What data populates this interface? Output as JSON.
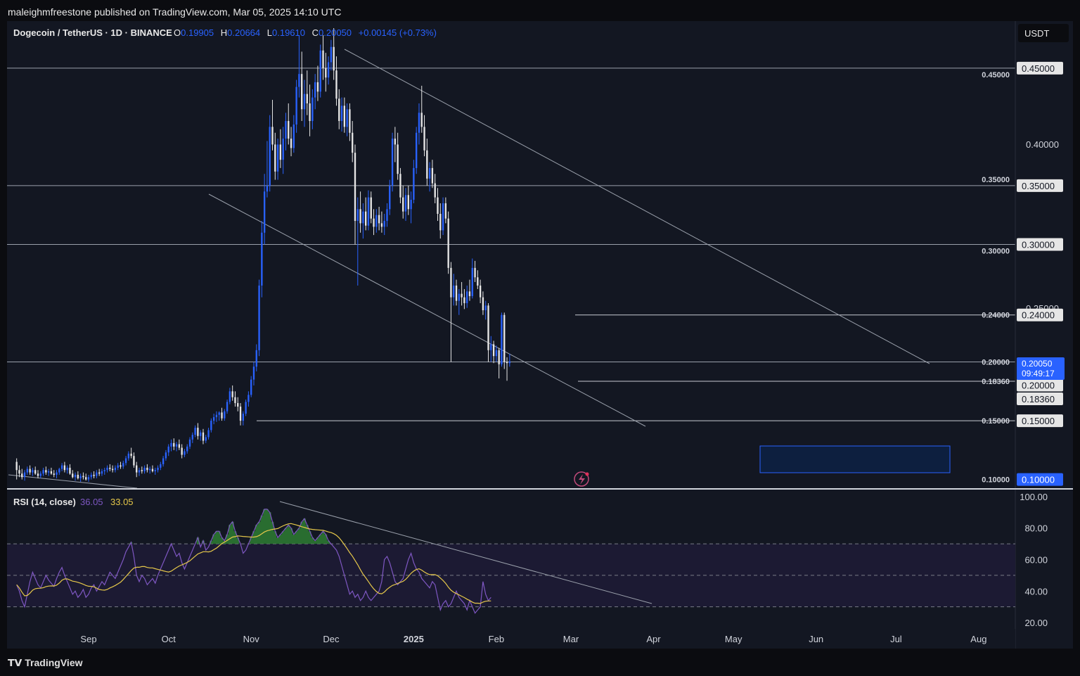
{
  "header": {
    "attribution": "maleighmfreestone published on TradingView.com, Mar 05, 2025 14:10 UTC"
  },
  "footer": {
    "brand": "TradingView"
  },
  "colors": {
    "background": "#131722",
    "up": "#2962ff",
    "down": "#e6e6e6",
    "rsi": "#7e57c2",
    "rsi_ma": "#e6c84a",
    "label_blue": "#2962ff"
  },
  "legend": {
    "symbol": "Dogecoin / TetherUS · 1D · BINANCE",
    "o_label": "O",
    "o": "0.19905",
    "h_label": "H",
    "h": "0.20664",
    "l_label": "L",
    "l": "0.19610",
    "c_label": "C",
    "c": "0.20050",
    "change": "+0.00145 (+0.73%)"
  },
  "currency": "USDT",
  "rsi_legend": {
    "name": "RSI (14, close)",
    "value": "36.05",
    "ma": "33.05"
  },
  "price_axis_labels": [
    "0.40000",
    "0.25000"
  ],
  "rsi_axis_labels": [
    "100.00",
    "80.00",
    "60.00",
    "40.00",
    "20.00"
  ],
  "hlines": [
    {
      "price": 0.45,
      "label": "0.45000",
      "badge": "0.45000"
    },
    {
      "price": 0.35,
      "label": "0.35000",
      "badge": "0.35000"
    },
    {
      "price": 0.3,
      "label": "0.30000",
      "badge": "0.30000"
    },
    {
      "price": 0.24,
      "label": "0.24000",
      "badge": "0.24000"
    },
    {
      "price": 0.2,
      "label": "0.20000",
      "badge": "0.20000"
    },
    {
      "price": 0.1836,
      "label": "0.18360",
      "badge": "0.18360"
    },
    {
      "price": 0.15,
      "label": "0.15000",
      "badge": "0.15000"
    },
    {
      "price": 0.1,
      "label": "0.10000",
      "badge": "0.10000"
    }
  ],
  "current_price": {
    "value": "0.20050",
    "countdown": "09:49:17"
  },
  "time_labels": [
    "Sep",
    "Oct",
    "Nov",
    "Dec",
    "2025",
    "Feb",
    "Mar",
    "Apr",
    "May",
    "Jun",
    "Jul",
    "Aug"
  ],
  "chart_data": {
    "type": "candlestick",
    "x_start": "Aug 05, 2024",
    "x_end": "Mar 05, 2025",
    "ylim": [
      0.092,
      0.49
    ],
    "candles": [
      [
        0.115,
        0.118,
        0.1,
        0.108
      ],
      [
        0.108,
        0.112,
        0.102,
        0.105
      ],
      [
        0.105,
        0.109,
        0.1,
        0.102
      ],
      [
        0.102,
        0.108,
        0.099,
        0.106
      ],
      [
        0.106,
        0.111,
        0.104,
        0.109
      ],
      [
        0.109,
        0.112,
        0.104,
        0.106
      ],
      [
        0.106,
        0.11,
        0.103,
        0.108
      ],
      [
        0.108,
        0.111,
        0.104,
        0.105
      ],
      [
        0.105,
        0.108,
        0.101,
        0.103
      ],
      [
        0.103,
        0.107,
        0.101,
        0.105
      ],
      [
        0.105,
        0.11,
        0.103,
        0.108
      ],
      [
        0.108,
        0.111,
        0.104,
        0.106
      ],
      [
        0.106,
        0.109,
        0.103,
        0.107
      ],
      [
        0.107,
        0.11,
        0.104,
        0.105
      ],
      [
        0.105,
        0.108,
        0.102,
        0.104
      ],
      [
        0.104,
        0.108,
        0.101,
        0.106
      ],
      [
        0.106,
        0.11,
        0.104,
        0.109
      ],
      [
        0.109,
        0.114,
        0.107,
        0.112
      ],
      [
        0.112,
        0.115,
        0.106,
        0.108
      ],
      [
        0.108,
        0.112,
        0.105,
        0.11
      ],
      [
        0.11,
        0.113,
        0.104,
        0.105
      ],
      [
        0.105,
        0.108,
        0.101,
        0.102
      ],
      [
        0.102,
        0.106,
        0.099,
        0.104
      ],
      [
        0.104,
        0.107,
        0.1,
        0.101
      ],
      [
        0.101,
        0.105,
        0.098,
        0.103
      ],
      [
        0.103,
        0.106,
        0.1,
        0.102
      ],
      [
        0.102,
        0.105,
        0.099,
        0.1
      ],
      [
        0.1,
        0.104,
        0.098,
        0.102
      ],
      [
        0.102,
        0.106,
        0.1,
        0.104
      ],
      [
        0.104,
        0.107,
        0.101,
        0.103
      ],
      [
        0.103,
        0.108,
        0.101,
        0.106
      ],
      [
        0.106,
        0.109,
        0.103,
        0.105
      ],
      [
        0.105,
        0.109,
        0.103,
        0.107
      ],
      [
        0.107,
        0.11,
        0.104,
        0.108
      ],
      [
        0.108,
        0.112,
        0.106,
        0.11
      ],
      [
        0.11,
        0.113,
        0.107,
        0.109
      ],
      [
        0.109,
        0.112,
        0.106,
        0.108
      ],
      [
        0.108,
        0.112,
        0.106,
        0.11
      ],
      [
        0.11,
        0.114,
        0.108,
        0.112
      ],
      [
        0.112,
        0.115,
        0.109,
        0.111
      ],
      [
        0.111,
        0.116,
        0.109,
        0.114
      ],
      [
        0.114,
        0.12,
        0.112,
        0.118
      ],
      [
        0.118,
        0.124,
        0.116,
        0.122
      ],
      [
        0.122,
        0.127,
        0.118,
        0.12
      ],
      [
        0.12,
        0.123,
        0.11,
        0.112
      ],
      [
        0.112,
        0.115,
        0.102,
        0.106
      ],
      [
        0.106,
        0.11,
        0.103,
        0.108
      ],
      [
        0.108,
        0.111,
        0.105,
        0.107
      ],
      [
        0.107,
        0.112,
        0.105,
        0.11
      ],
      [
        0.11,
        0.113,
        0.106,
        0.108
      ],
      [
        0.108,
        0.111,
        0.105,
        0.109
      ],
      [
        0.109,
        0.112,
        0.106,
        0.107
      ],
      [
        0.107,
        0.11,
        0.104,
        0.108
      ],
      [
        0.108,
        0.112,
        0.106,
        0.11
      ],
      [
        0.11,
        0.115,
        0.108,
        0.113
      ],
      [
        0.113,
        0.12,
        0.111,
        0.118
      ],
      [
        0.118,
        0.125,
        0.116,
        0.123
      ],
      [
        0.123,
        0.13,
        0.12,
        0.128
      ],
      [
        0.128,
        0.134,
        0.124,
        0.131
      ],
      [
        0.131,
        0.135,
        0.125,
        0.128
      ],
      [
        0.128,
        0.132,
        0.124,
        0.13
      ],
      [
        0.13,
        0.134,
        0.125,
        0.127
      ],
      [
        0.127,
        0.13,
        0.118,
        0.121
      ],
      [
        0.121,
        0.126,
        0.119,
        0.124
      ],
      [
        0.124,
        0.13,
        0.122,
        0.128
      ],
      [
        0.128,
        0.136,
        0.126,
        0.134
      ],
      [
        0.134,
        0.14,
        0.131,
        0.138
      ],
      [
        0.138,
        0.146,
        0.136,
        0.144
      ],
      [
        0.144,
        0.148,
        0.134,
        0.137
      ],
      [
        0.137,
        0.142,
        0.133,
        0.14
      ],
      [
        0.14,
        0.143,
        0.13,
        0.133
      ],
      [
        0.133,
        0.138,
        0.131,
        0.136
      ],
      [
        0.136,
        0.144,
        0.134,
        0.142
      ],
      [
        0.142,
        0.152,
        0.14,
        0.15
      ],
      [
        0.15,
        0.156,
        0.147,
        0.153
      ],
      [
        0.153,
        0.158,
        0.149,
        0.155
      ],
      [
        0.155,
        0.158,
        0.15,
        0.157
      ],
      [
        0.157,
        0.161,
        0.15,
        0.152
      ],
      [
        0.152,
        0.16,
        0.15,
        0.158
      ],
      [
        0.158,
        0.168,
        0.156,
        0.166
      ],
      [
        0.166,
        0.178,
        0.164,
        0.175
      ],
      [
        0.175,
        0.18,
        0.167,
        0.17
      ],
      [
        0.17,
        0.175,
        0.162,
        0.165
      ],
      [
        0.165,
        0.17,
        0.158,
        0.162
      ],
      [
        0.162,
        0.165,
        0.146,
        0.15
      ],
      [
        0.15,
        0.158,
        0.146,
        0.156
      ],
      [
        0.156,
        0.168,
        0.154,
        0.166
      ],
      [
        0.166,
        0.175,
        0.162,
        0.172
      ],
      [
        0.172,
        0.188,
        0.17,
        0.185
      ],
      [
        0.185,
        0.2,
        0.18,
        0.196
      ],
      [
        0.196,
        0.215,
        0.192,
        0.21
      ],
      [
        0.21,
        0.27,
        0.205,
        0.265
      ],
      [
        0.265,
        0.32,
        0.255,
        0.31
      ],
      [
        0.31,
        0.36,
        0.3,
        0.345
      ],
      [
        0.345,
        0.388,
        0.34,
        0.35
      ],
      [
        0.35,
        0.41,
        0.345,
        0.4
      ],
      [
        0.4,
        0.423,
        0.38,
        0.385
      ],
      [
        0.385,
        0.395,
        0.355,
        0.362
      ],
      [
        0.362,
        0.39,
        0.355,
        0.385
      ],
      [
        0.385,
        0.398,
        0.365,
        0.372
      ],
      [
        0.372,
        0.4,
        0.36,
        0.39
      ],
      [
        0.39,
        0.412,
        0.38,
        0.405
      ],
      [
        0.405,
        0.42,
        0.385,
        0.39
      ],
      [
        0.39,
        0.4,
        0.375,
        0.382
      ],
      [
        0.382,
        0.41,
        0.378,
        0.402
      ],
      [
        0.402,
        0.44,
        0.395,
        0.434
      ],
      [
        0.434,
        0.478,
        0.425,
        0.445
      ],
      [
        0.445,
        0.464,
        0.405,
        0.415
      ],
      [
        0.415,
        0.44,
        0.4,
        0.428
      ],
      [
        0.428,
        0.448,
        0.41,
        0.42
      ],
      [
        0.42,
        0.436,
        0.392,
        0.405
      ],
      [
        0.405,
        0.432,
        0.398,
        0.425
      ],
      [
        0.425,
        0.445,
        0.415,
        0.438
      ],
      [
        0.438,
        0.452,
        0.422,
        0.43
      ],
      [
        0.43,
        0.47,
        0.425,
        0.465
      ],
      [
        0.465,
        0.478,
        0.44,
        0.45
      ],
      [
        0.45,
        0.463,
        0.43,
        0.442
      ],
      [
        0.442,
        0.46,
        0.436,
        0.455
      ],
      [
        0.455,
        0.474,
        0.448,
        0.468
      ],
      [
        0.468,
        0.484,
        0.44,
        0.448
      ],
      [
        0.448,
        0.46,
        0.418,
        0.424
      ],
      [
        0.424,
        0.432,
        0.398,
        0.405
      ],
      [
        0.405,
        0.425,
        0.396,
        0.418
      ],
      [
        0.418,
        0.425,
        0.395,
        0.4
      ],
      [
        0.4,
        0.42,
        0.392,
        0.415
      ],
      [
        0.415,
        0.42,
        0.388,
        0.395
      ],
      [
        0.395,
        0.405,
        0.37,
        0.378
      ],
      [
        0.378,
        0.385,
        0.3,
        0.32
      ],
      [
        0.32,
        0.34,
        0.265,
        0.33
      ],
      [
        0.33,
        0.345,
        0.31,
        0.318
      ],
      [
        0.318,
        0.335,
        0.305,
        0.328
      ],
      [
        0.328,
        0.34,
        0.312,
        0.316
      ],
      [
        0.316,
        0.346,
        0.312,
        0.34
      ],
      [
        0.34,
        0.345,
        0.318,
        0.322
      ],
      [
        0.322,
        0.33,
        0.308,
        0.315
      ],
      [
        0.315,
        0.33,
        0.31,
        0.325
      ],
      [
        0.325,
        0.332,
        0.312,
        0.318
      ],
      [
        0.318,
        0.328,
        0.31,
        0.315
      ],
      [
        0.315,
        0.326,
        0.308,
        0.32
      ],
      [
        0.32,
        0.335,
        0.315,
        0.33
      ],
      [
        0.33,
        0.355,
        0.325,
        0.35
      ],
      [
        0.35,
        0.395,
        0.345,
        0.39
      ],
      [
        0.39,
        0.4,
        0.37,
        0.385
      ],
      [
        0.385,
        0.395,
        0.355,
        0.36
      ],
      [
        0.36,
        0.365,
        0.335,
        0.34
      ],
      [
        0.34,
        0.35,
        0.322,
        0.328
      ],
      [
        0.328,
        0.348,
        0.32,
        0.342
      ],
      [
        0.342,
        0.35,
        0.325,
        0.33
      ],
      [
        0.33,
        0.345,
        0.318,
        0.338
      ],
      [
        0.338,
        0.372,
        0.335,
        0.365
      ],
      [
        0.365,
        0.4,
        0.36,
        0.395
      ],
      [
        0.395,
        0.42,
        0.385,
        0.412
      ],
      [
        0.412,
        0.435,
        0.395,
        0.4
      ],
      [
        0.4,
        0.41,
        0.375,
        0.38
      ],
      [
        0.38,
        0.39,
        0.35,
        0.356
      ],
      [
        0.356,
        0.37,
        0.345,
        0.365
      ],
      [
        0.365,
        0.372,
        0.348,
        0.352
      ],
      [
        0.352,
        0.36,
        0.335,
        0.34
      ],
      [
        0.34,
        0.348,
        0.32,
        0.326
      ],
      [
        0.326,
        0.335,
        0.305,
        0.312
      ],
      [
        0.312,
        0.34,
        0.308,
        0.335
      ],
      [
        0.335,
        0.34,
        0.318,
        0.322
      ],
      [
        0.322,
        0.328,
        0.275,
        0.28
      ],
      [
        0.28,
        0.285,
        0.2,
        0.255
      ],
      [
        0.255,
        0.275,
        0.248,
        0.265
      ],
      [
        0.265,
        0.27,
        0.248,
        0.252
      ],
      [
        0.252,
        0.262,
        0.24,
        0.258
      ],
      [
        0.258,
        0.268,
        0.248,
        0.255
      ],
      [
        0.255,
        0.262,
        0.245,
        0.25
      ],
      [
        0.25,
        0.265,
        0.246,
        0.26
      ],
      [
        0.26,
        0.27,
        0.252,
        0.256
      ],
      [
        0.256,
        0.288,
        0.254,
        0.28
      ],
      [
        0.28,
        0.286,
        0.268,
        0.272
      ],
      [
        0.272,
        0.278,
        0.262,
        0.265
      ],
      [
        0.265,
        0.27,
        0.25,
        0.255
      ],
      [
        0.255,
        0.26,
        0.24,
        0.244
      ],
      [
        0.244,
        0.252,
        0.236,
        0.248
      ],
      [
        0.248,
        0.25,
        0.2,
        0.21
      ],
      [
        0.21,
        0.222,
        0.2,
        0.215
      ],
      [
        0.215,
        0.218,
        0.199,
        0.205
      ],
      [
        0.205,
        0.214,
        0.2,
        0.21
      ],
      [
        0.21,
        0.212,
        0.186,
        0.198
      ],
      [
        0.198,
        0.242,
        0.196,
        0.24
      ],
      [
        0.24,
        0.242,
        0.194,
        0.2
      ],
      [
        0.2,
        0.204,
        0.184,
        0.199
      ],
      [
        0.199,
        0.207,
        0.196,
        0.2005
      ]
    ]
  },
  "rsi_data": {
    "ylim": [
      16,
      104
    ],
    "upper": 70,
    "middle": 50,
    "lower": 30,
    "rsi": [
      44,
      40,
      34,
      30,
      38,
      46,
      52,
      48,
      44,
      42,
      46,
      50,
      47,
      45,
      43,
      48,
      52,
      55,
      50,
      46,
      42,
      38,
      40,
      36,
      38,
      41,
      36,
      38,
      42,
      44,
      40,
      43,
      46,
      44,
      48,
      52,
      50,
      48,
      52,
      56,
      60,
      65,
      68,
      71,
      62,
      50,
      46,
      50,
      48,
      44,
      46,
      48,
      45,
      50,
      54,
      58,
      62,
      66,
      70,
      66,
      62,
      64,
      58,
      54,
      58,
      62,
      66,
      70,
      74,
      68,
      72,
      66,
      68,
      72,
      76,
      78,
      78,
      74,
      72,
      76,
      82,
      84,
      78,
      74,
      70,
      64,
      66,
      70,
      74,
      78,
      82,
      84,
      88,
      92,
      92,
      90,
      84,
      78,
      74,
      76,
      78,
      80,
      82,
      80,
      76,
      78,
      80,
      84,
      86,
      82,
      78,
      74,
      72,
      74,
      76,
      78,
      76,
      72,
      70,
      68,
      66,
      62,
      56,
      50,
      44,
      38,
      40,
      36,
      38,
      34,
      36,
      40,
      36,
      34,
      36,
      38,
      40,
      46,
      60,
      62,
      58,
      52,
      46,
      44,
      46,
      48,
      54,
      60,
      64,
      58,
      54,
      52,
      48,
      46,
      44,
      42,
      46,
      44,
      36,
      28,
      32,
      34,
      30,
      32,
      36,
      40,
      36,
      34,
      32,
      28,
      34,
      30,
      26,
      28,
      30,
      46,
      38,
      34,
      36
    ]
  }
}
